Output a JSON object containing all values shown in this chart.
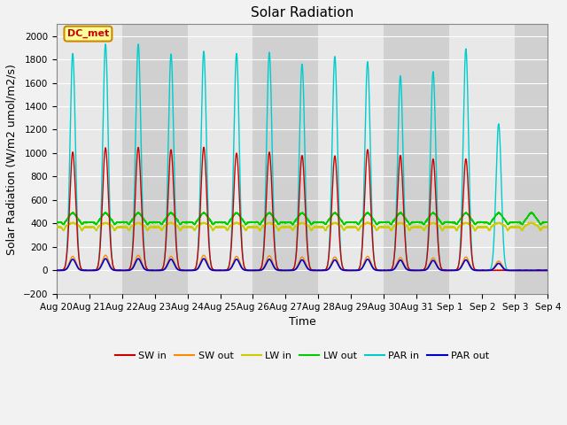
{
  "title": "Solar Radiation",
  "ylabel": "Solar Radiation (W/m2 umol/m2/s)",
  "xlabel": "Time",
  "ylim": [
    -200,
    2100
  ],
  "yticks": [
    -200,
    0,
    200,
    400,
    600,
    800,
    1000,
    1200,
    1400,
    1600,
    1800,
    2000
  ],
  "n_days": 15,
  "colors": {
    "SW_in": "#cc0000",
    "SW_out": "#ff8800",
    "LW_in": "#cccc00",
    "LW_out": "#00cc00",
    "PAR_in": "#00cccc",
    "PAR_out": "#0000cc"
  },
  "legend_labels": [
    "SW in",
    "SW out",
    "LW in",
    "LW out",
    "PAR in",
    "PAR out"
  ],
  "annotation_text": "DC_met",
  "annotation_color": "#cc0000",
  "annotation_bg": "#ffff99",
  "annotation_border": "#cc8800",
  "plot_bg_light": "#e8e8e8",
  "plot_bg_dark": "#d0d0d0",
  "grid_color": "#ffffff",
  "SW_in_peaks": [
    1010,
    1045,
    1050,
    1030,
    1050,
    1000,
    1010,
    980,
    975,
    1030,
    980,
    950,
    950,
    0,
    0
  ],
  "PAR_in_peaks": [
    1850,
    1930,
    1930,
    1845,
    1870,
    1850,
    1860,
    1760,
    1825,
    1780,
    1660,
    1695,
    1890,
    1250,
    0
  ],
  "SW_out_peaks": [
    120,
    130,
    130,
    120,
    130,
    120,
    125,
    115,
    115,
    120,
    110,
    108,
    115,
    80,
    0
  ],
  "PAR_out_peaks": [
    95,
    100,
    100,
    95,
    100,
    95,
    95,
    90,
    90,
    95,
    88,
    85,
    90,
    60,
    0
  ],
  "LW_in_base": 370,
  "LW_in_day_bump": 35,
  "LW_in_night_dip": 30,
  "LW_out_base": 410,
  "LW_out_day_bump": 80,
  "LW_out_night_dip": 20,
  "title_fontsize": 11,
  "axis_fontsize": 9,
  "tick_fontsize": 7.5,
  "fig_facecolor": "#f2f2f2"
}
